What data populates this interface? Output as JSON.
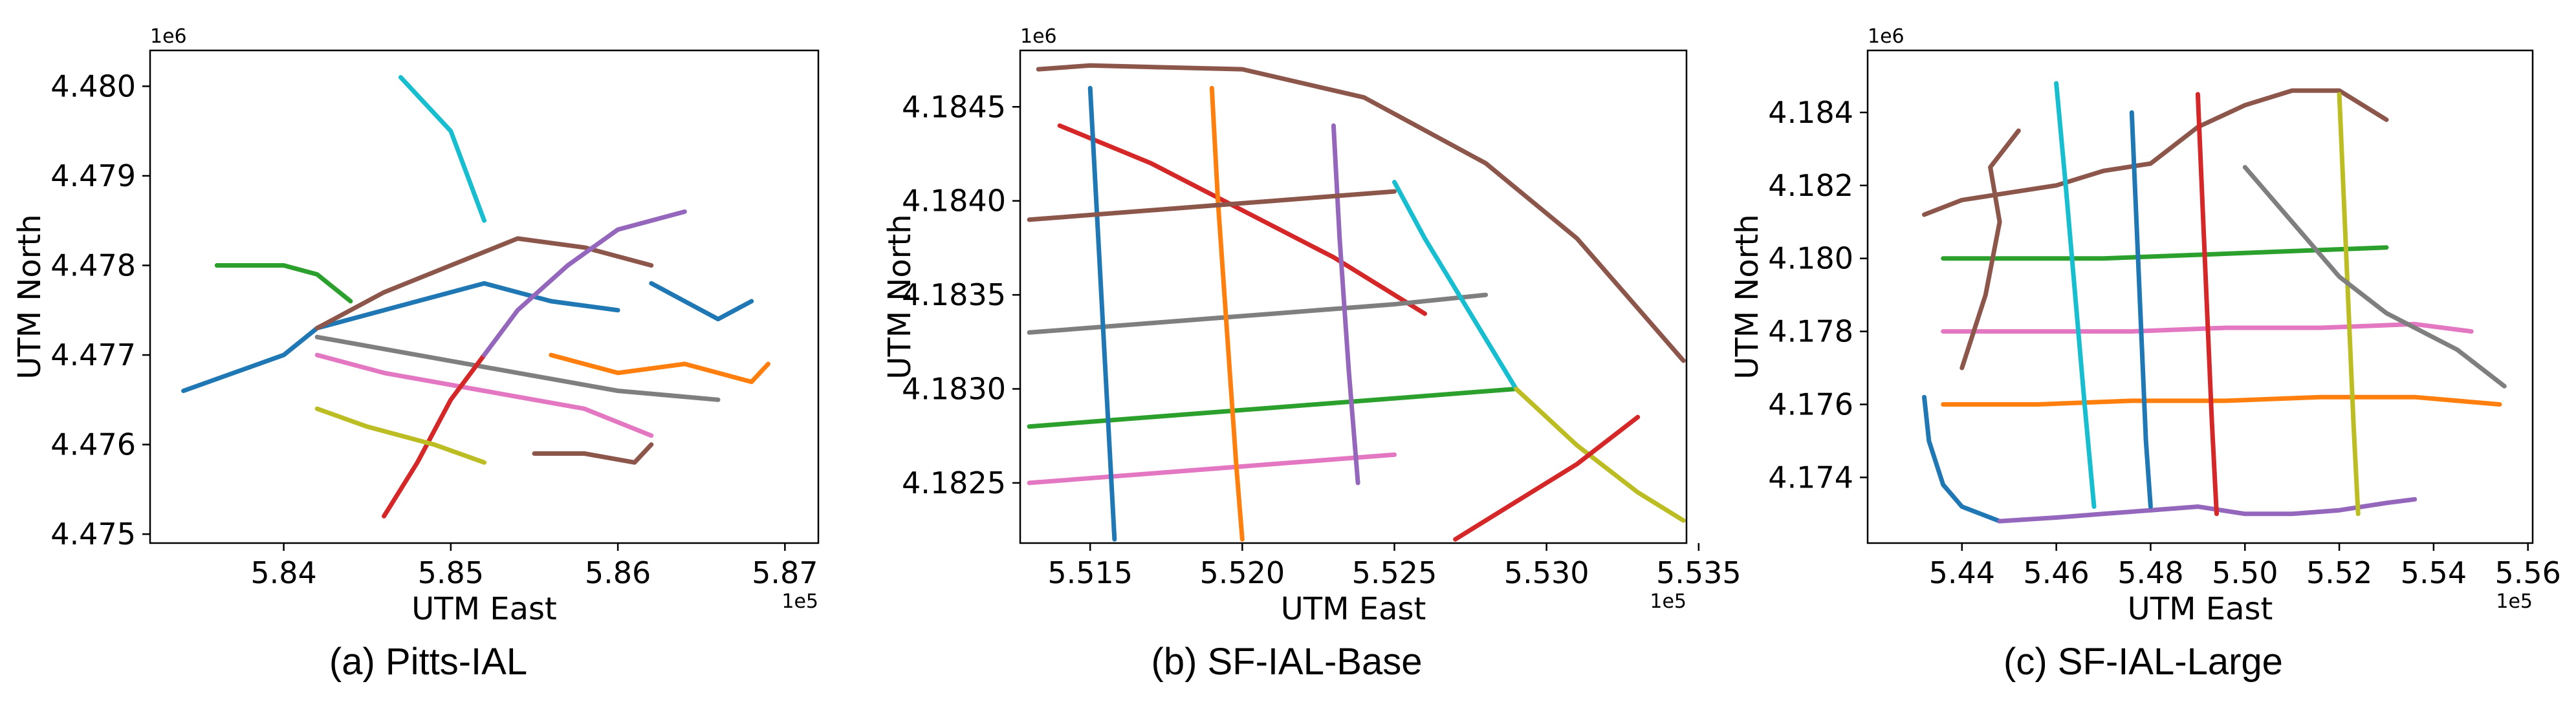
{
  "chart_data": [
    {
      "type": "line",
      "caption": "(a) Pitts-IAL",
      "xlabel": "UTM East",
      "ylabel": "UTM North",
      "x_offset_label": "1e5",
      "y_offset_label": "1e6",
      "xlim": [
        5.832,
        5.872
      ],
      "ylim": [
        4.4749,
        4.4804
      ],
      "x_ticks": [
        5.84,
        5.85,
        5.86,
        5.87
      ],
      "x_tick_labels": [
        "5.84",
        "5.85",
        "5.86",
        "5.87"
      ],
      "y_ticks": [
        4.475,
        4.476,
        4.477,
        4.478,
        4.479,
        4.48
      ],
      "y_tick_labels": [
        "4.475",
        "4.476",
        "4.477",
        "4.478",
        "4.479",
        "4.480"
      ],
      "grid": false,
      "series": [
        {
          "color": "#1f77b4",
          "points": [
            [
              5.834,
              4.4766
            ],
            [
              5.84,
              4.477
            ],
            [
              5.842,
              4.4773
            ],
            [
              5.846,
              4.4775
            ],
            [
              5.852,
              4.4778
            ],
            [
              5.856,
              4.4776
            ],
            [
              5.86,
              4.4775
            ]
          ]
        },
        {
          "color": "#8c564b",
          "points": [
            [
              5.842,
              4.4773
            ],
            [
              5.846,
              4.4777
            ],
            [
              5.85,
              4.478
            ],
            [
              5.854,
              4.4783
            ],
            [
              5.858,
              4.4782
            ],
            [
              5.862,
              4.478
            ]
          ]
        },
        {
          "color": "#7f7f7f",
          "points": [
            [
              5.842,
              4.4772
            ],
            [
              5.848,
              4.477
            ],
            [
              5.854,
              4.4768
            ],
            [
              5.86,
              4.4766
            ],
            [
              5.866,
              4.4765
            ]
          ]
        },
        {
          "color": "#2ca02c",
          "points": [
            [
              5.836,
              4.478
            ],
            [
              5.84,
              4.478
            ],
            [
              5.842,
              4.4779
            ],
            [
              5.844,
              4.4776
            ]
          ]
        },
        {
          "color": "#e377c2",
          "points": [
            [
              5.842,
              4.477
            ],
            [
              5.846,
              4.4768
            ],
            [
              5.852,
              4.4766
            ],
            [
              5.858,
              4.4764
            ],
            [
              5.862,
              4.4761
            ]
          ]
        },
        {
          "color": "#17becf",
          "points": [
            [
              5.847,
              4.4801
            ],
            [
              5.85,
              4.4795
            ],
            [
              5.851,
              4.479
            ],
            [
              5.852,
              4.4785
            ]
          ]
        },
        {
          "color": "#d62728",
          "points": [
            [
              5.846,
              4.4752
            ],
            [
              5.848,
              4.4758
            ],
            [
              5.85,
              4.4765
            ],
            [
              5.852,
              4.477
            ]
          ]
        },
        {
          "color": "#ff7f0e",
          "points": [
            [
              5.856,
              4.477
            ],
            [
              5.86,
              4.4768
            ],
            [
              5.864,
              4.4769
            ],
            [
              5.868,
              4.4767
            ],
            [
              5.869,
              4.4769
            ]
          ]
        },
        {
          "color": "#9467bd",
          "points": [
            [
              5.852,
              4.477
            ],
            [
              5.854,
              4.4775
            ],
            [
              5.857,
              4.478
            ],
            [
              5.86,
              4.4784
            ],
            [
              5.864,
              4.4786
            ]
          ]
        },
        {
          "color": "#bcbd22",
          "points": [
            [
              5.842,
              4.4764
            ],
            [
              5.845,
              4.4762
            ],
            [
              5.849,
              4.476
            ],
            [
              5.852,
              4.4758
            ]
          ]
        },
        {
          "color": "#8c564b",
          "points": [
            [
              5.855,
              4.4759
            ],
            [
              5.858,
              4.4759
            ],
            [
              5.861,
              4.4758
            ],
            [
              5.862,
              4.476
            ]
          ]
        },
        {
          "color": "#1f77b4",
          "points": [
            [
              5.862,
              4.4778
            ],
            [
              5.864,
              4.4776
            ],
            [
              5.866,
              4.4774
            ],
            [
              5.868,
              4.4776
            ]
          ]
        }
      ]
    },
    {
      "type": "line",
      "caption": "(b) SF-IAL-Base",
      "xlabel": "UTM East",
      "ylabel": "UTM North",
      "x_offset_label": "1e5",
      "y_offset_label": "1e6",
      "xlim": [
        5.5127,
        5.5346
      ],
      "ylim": [
        4.18218,
        4.1848
      ],
      "x_ticks": [
        5.515,
        5.52,
        5.525,
        5.53,
        5.535
      ],
      "x_tick_labels": [
        "5.515",
        "5.520",
        "5.525",
        "5.530",
        "5.535"
      ],
      "y_ticks": [
        4.1825,
        4.183,
        4.1835,
        4.184,
        4.1845
      ],
      "y_tick_labels": [
        "4.1825",
        "4.1830",
        "4.1835",
        "4.1840",
        "4.1845"
      ],
      "grid": false,
      "series": [
        {
          "color": "#8c564b",
          "points": [
            [
              5.5133,
              4.1847
            ],
            [
              5.515,
              4.18472
            ],
            [
              5.52,
              4.1847
            ],
            [
              5.524,
              4.18455
            ],
            [
              5.528,
              4.1842
            ],
            [
              5.531,
              4.1838
            ],
            [
              5.5345,
              4.18315
            ]
          ]
        },
        {
          "color": "#d62728",
          "points": [
            [
              5.514,
              4.1844
            ],
            [
              5.517,
              4.1842
            ],
            [
              5.52,
              4.18395
            ],
            [
              5.523,
              4.1837
            ],
            [
              5.526,
              4.1834
            ]
          ]
        },
        {
          "color": "#7f7f7f",
          "points": [
            [
              5.513,
              4.1833
            ],
            [
              5.517,
              4.18335
            ],
            [
              5.521,
              4.1834
            ],
            [
              5.525,
              4.18345
            ],
            [
              5.528,
              4.1835
            ]
          ]
        },
        {
          "color": "#2ca02c",
          "points": [
            [
              5.513,
              4.1828
            ],
            [
              5.517,
              4.18285
            ],
            [
              5.521,
              4.1829
            ],
            [
              5.525,
              4.18295
            ],
            [
              5.529,
              4.183
            ]
          ]
        },
        {
          "color": "#e377c2",
          "points": [
            [
              5.513,
              4.1825
            ],
            [
              5.517,
              4.18255
            ],
            [
              5.521,
              4.1826
            ],
            [
              5.525,
              4.18265
            ]
          ]
        },
        {
          "color": "#1f77b4",
          "points": [
            [
              5.515,
              4.1846
            ],
            [
              5.5152,
              4.184
            ],
            [
              5.5154,
              4.1834
            ],
            [
              5.5156,
              4.1828
            ],
            [
              5.5158,
              4.1822
            ]
          ]
        },
        {
          "color": "#ff7f0e",
          "points": [
            [
              5.519,
              4.1846
            ],
            [
              5.5192,
              4.184
            ],
            [
              5.5195,
              4.1833
            ],
            [
              5.5198,
              4.1826
            ],
            [
              5.52,
              4.1822
            ]
          ]
        },
        {
          "color": "#9467bd",
          "points": [
            [
              5.523,
              4.1844
            ],
            [
              5.5232,
              4.1838
            ],
            [
              5.5235,
              4.1831
            ],
            [
              5.5238,
              4.1825
            ]
          ]
        },
        {
          "color": "#17becf",
          "points": [
            [
              5.525,
              4.1841
            ],
            [
              5.526,
              4.1838
            ],
            [
              5.5275,
              4.1834
            ],
            [
              5.529,
              4.183
            ]
          ]
        },
        {
          "color": "#bcbd22",
          "points": [
            [
              5.529,
              4.183
            ],
            [
              5.531,
              4.1827
            ],
            [
              5.533,
              4.18245
            ],
            [
              5.5345,
              4.1823
            ]
          ]
        },
        {
          "color": "#d62728",
          "points": [
            [
              5.527,
              4.1822
            ],
            [
              5.529,
              4.1824
            ],
            [
              5.531,
              4.1826
            ],
            [
              5.533,
              4.18285
            ]
          ]
        },
        {
          "color": "#8c564b",
          "points": [
            [
              5.513,
              4.1839
            ],
            [
              5.517,
              4.18395
            ],
            [
              5.521,
              4.184
            ],
            [
              5.525,
              4.18405
            ]
          ]
        }
      ]
    },
    {
      "type": "line",
      "caption": "(c) SF-IAL-Large",
      "xlabel": "UTM East",
      "ylabel": "UTM North",
      "x_offset_label": "1e5",
      "y_offset_label": "1e6",
      "xlim": [
        5.42,
        5.561
      ],
      "ylim": [
        4.1722,
        4.1857
      ],
      "x_ticks": [
        5.44,
        5.46,
        5.48,
        5.5,
        5.52,
        5.54,
        5.56
      ],
      "x_tick_labels": [
        "5.44",
        "5.46",
        "5.48",
        "5.50",
        "5.52",
        "5.54",
        "5.56"
      ],
      "y_ticks": [
        4.174,
        4.176,
        4.178,
        4.18,
        4.182,
        4.184
      ],
      "y_tick_labels": [
        "4.174",
        "4.176",
        "4.178",
        "4.180",
        "4.182",
        "4.184"
      ],
      "grid": false,
      "series": [
        {
          "color": "#8c564b",
          "points": [
            [
              5.432,
              4.1812
            ],
            [
              5.44,
              4.1816
            ],
            [
              5.45,
              4.1818
            ],
            [
              5.46,
              4.182
            ],
            [
              5.47,
              4.1824
            ],
            [
              5.48,
              4.1826
            ],
            [
              5.49,
              4.1836
            ],
            [
              5.5,
              4.1842
            ],
            [
              5.51,
              4.1846
            ],
            [
              5.52,
              4.1846
            ],
            [
              5.53,
              4.1838
            ]
          ]
        },
        {
          "color": "#1f77b4",
          "points": [
            [
              5.432,
              4.1762
            ],
            [
              5.433,
              4.175
            ],
            [
              5.436,
              4.1738
            ],
            [
              5.44,
              4.1732
            ],
            [
              5.448,
              4.1728
            ]
          ]
        },
        {
          "color": "#9467bd",
          "points": [
            [
              5.448,
              4.1728
            ],
            [
              5.46,
              4.1729
            ],
            [
              5.47,
              4.173
            ],
            [
              5.48,
              4.1731
            ],
            [
              5.49,
              4.1732
            ],
            [
              5.5,
              4.173
            ],
            [
              5.51,
              4.173
            ],
            [
              5.52,
              4.1731
            ],
            [
              5.53,
              4.1733
            ],
            [
              5.536,
              4.1734
            ]
          ]
        },
        {
          "color": "#2ca02c",
          "points": [
            [
              5.436,
              4.18
            ],
            [
              5.45,
              4.18
            ],
            [
              5.47,
              4.18
            ],
            [
              5.49,
              4.1801
            ],
            [
              5.51,
              4.1802
            ],
            [
              5.53,
              4.1803
            ]
          ]
        },
        {
          "color": "#e377c2",
          "points": [
            [
              5.436,
              4.178
            ],
            [
              5.456,
              4.178
            ],
            [
              5.476,
              4.178
            ],
            [
              5.496,
              4.1781
            ],
            [
              5.516,
              4.1781
            ],
            [
              5.536,
              4.1782
            ],
            [
              5.548,
              4.178
            ]
          ]
        },
        {
          "color": "#ff7f0e",
          "points": [
            [
              5.436,
              4.176
            ],
            [
              5.456,
              4.176
            ],
            [
              5.476,
              4.1761
            ],
            [
              5.496,
              4.1761
            ],
            [
              5.516,
              4.1762
            ],
            [
              5.536,
              4.1762
            ],
            [
              5.554,
              4.176
            ]
          ]
        },
        {
          "color": "#17becf",
          "points": [
            [
              5.46,
              4.1848
            ],
            [
              5.462,
              4.182
            ],
            [
              5.464,
              4.179
            ],
            [
              5.466,
              4.176
            ],
            [
              5.468,
              4.1732
            ]
          ]
        },
        {
          "color": "#d62728",
          "points": [
            [
              5.49,
              4.1845
            ],
            [
              5.491,
              4.1815
            ],
            [
              5.492,
              4.1785
            ],
            [
              5.493,
              4.1755
            ],
            [
              5.494,
              4.173
            ]
          ]
        },
        {
          "color": "#bcbd22",
          "points": [
            [
              5.52,
              4.1845
            ],
            [
              5.521,
              4.1815
            ],
            [
              5.522,
              4.1785
            ],
            [
              5.523,
              4.1755
            ],
            [
              5.524,
              4.173
            ]
          ]
        },
        {
          "color": "#7f7f7f",
          "points": [
            [
              5.5,
              4.1825
            ],
            [
              5.51,
              4.181
            ],
            [
              5.52,
              4.1795
            ],
            [
              5.53,
              4.1785
            ],
            [
              5.545,
              4.1775
            ],
            [
              5.555,
              4.1765
            ]
          ]
        },
        {
          "color": "#8c564b",
          "points": [
            [
              5.44,
              4.177
            ],
            [
              5.445,
              4.179
            ],
            [
              5.448,
              4.181
            ],
            [
              5.446,
              4.1825
            ],
            [
              5.452,
              4.1835
            ]
          ]
        },
        {
          "color": "#1f77b4",
          "points": [
            [
              5.476,
              4.184
            ],
            [
              5.477,
              4.181
            ],
            [
              5.478,
              4.178
            ],
            [
              5.479,
              4.175
            ],
            [
              5.48,
              4.1732
            ]
          ]
        }
      ]
    }
  ],
  "captions": [
    "(a) Pitts-IAL",
    "(b) SF-IAL-Base",
    "(c) SF-IAL-Large"
  ]
}
